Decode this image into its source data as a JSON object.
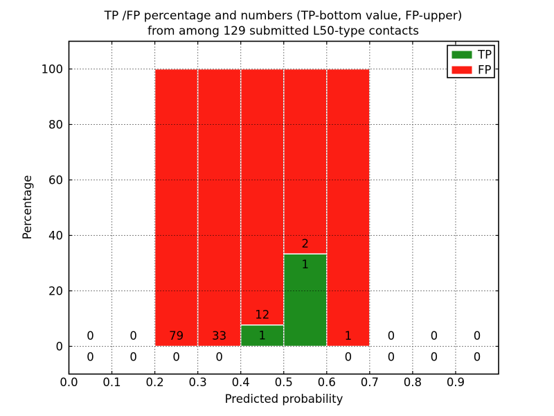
{
  "chart_data": {
    "type": "bar",
    "stacked": true,
    "title_lines": [
      "TP /FP percentage and numbers (TP-bottom value, FP-upper)",
      "from among 129 submitted L50-type contacts"
    ],
    "xlabel": "Predicted probability",
    "ylabel": "Percentage",
    "xlim": [
      0.0,
      1.0
    ],
    "ylim": [
      -10,
      110
    ],
    "xtick_labels": [
      "0.0",
      "0.1",
      "0.2",
      "0.3",
      "0.4",
      "0.5",
      "0.6",
      "0.7",
      "0.8",
      "0.9"
    ],
    "ytick_values": [
      0,
      20,
      40,
      60,
      80,
      100
    ],
    "grid": "dotted black, drawn above bars",
    "bin_width": 0.1,
    "bin_starts": [
      0.0,
      0.1,
      0.2,
      0.3,
      0.4,
      0.5,
      0.6,
      0.7,
      0.8,
      0.9
    ],
    "total_contacts": 129,
    "series": [
      {
        "name": "TP",
        "color": "#1e8c1e",
        "percent": [
          0,
          0,
          0,
          0,
          7.69,
          33.33,
          0,
          0,
          0,
          0
        ],
        "counts": [
          0,
          0,
          0,
          0,
          1,
          1,
          0,
          0,
          0,
          0
        ]
      },
      {
        "name": "FP",
        "color": "#fc1e14",
        "percent": [
          0,
          0,
          100,
          100,
          92.31,
          66.67,
          100,
          0,
          0,
          0
        ],
        "counts": [
          0,
          0,
          79,
          33,
          12,
          2,
          1,
          0,
          0,
          0
        ]
      }
    ],
    "bar_edge_color": "#ffffff",
    "label_note": "TP count shown below / FP count shown above the top of the TP segment",
    "legend_position": "upper right"
  }
}
